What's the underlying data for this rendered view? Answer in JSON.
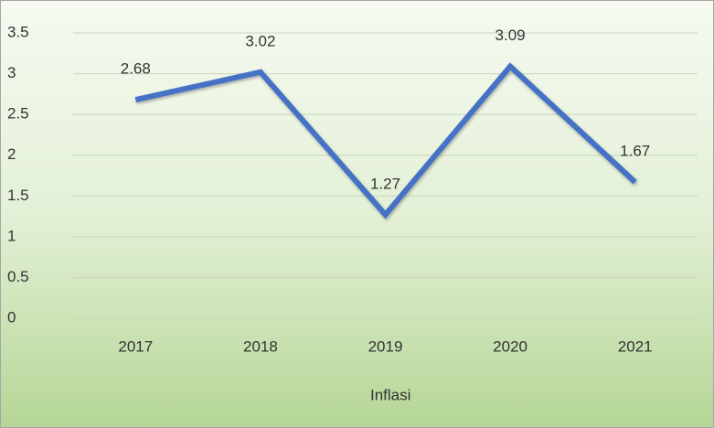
{
  "chart_data": {
    "type": "line",
    "categories": [
      "2017",
      "2018",
      "2019",
      "2020",
      "2021"
    ],
    "series": [
      {
        "name": "Inflasi",
        "color": "#4472c4",
        "values": [
          2.68,
          3.02,
          1.27,
          3.09,
          1.67
        ]
      }
    ],
    "ylim": [
      0,
      3.5
    ],
    "yticks": [
      0,
      0.5,
      1,
      1.5,
      2,
      2.5,
      3,
      3.5
    ],
    "grid": true,
    "data_labels": true,
    "legend": "bottom"
  }
}
